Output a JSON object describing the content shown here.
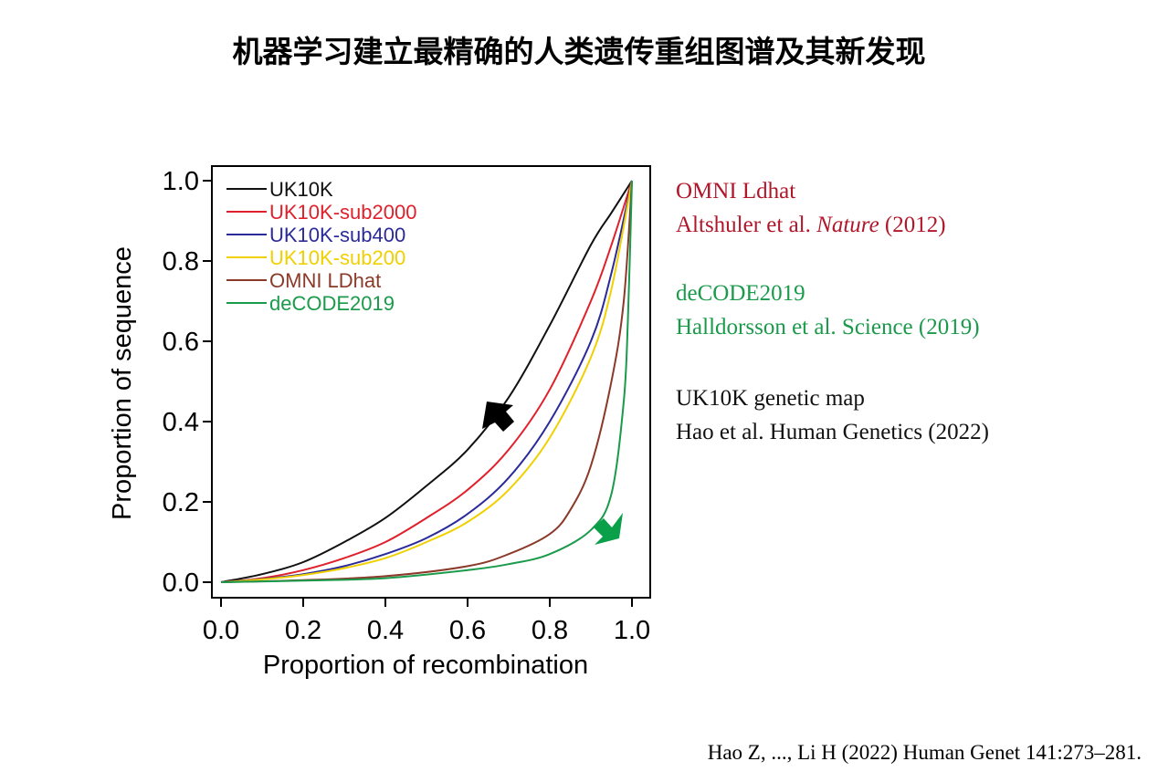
{
  "title": "机器学习建立最精确的人类遗传重组图谱及其新发现",
  "notes": [
    {
      "line1": "OMNI Ldhat",
      "line2a": "Altshuler et al. ",
      "line2i": "Nature",
      "line2b": " (2012)",
      "color": "#b0172a"
    },
    {
      "line1": "deCODE2019",
      "line2a": "Halldorsson et al. Science (2019)",
      "line2i": "",
      "line2b": "",
      "color": "#1a9a4a"
    },
    {
      "line1": "UK10K genetic map",
      "line2a": "Hao et al. Human Genetics (2022)",
      "line2i": "",
      "line2b": "",
      "color": "#111111"
    }
  ],
  "citation": "Hao Z, ..., Li H (2022) Human Genet 141:273–281.",
  "chart_data": {
    "type": "line",
    "xlabel": "Proportion of recombination",
    "ylabel": "Proportion of sequence",
    "xlim": [
      0,
      1
    ],
    "ylim": [
      0,
      1
    ],
    "xticks": [
      "0.0",
      "0.2",
      "0.4",
      "0.6",
      "0.8",
      "1.0"
    ],
    "yticks": [
      "0.0",
      "0.2",
      "0.4",
      "0.6",
      "0.8",
      "1.0"
    ],
    "legend_position": "top-left",
    "series": [
      {
        "name": "UK10K",
        "color": "#111111",
        "x": [
          0,
          0.1,
          0.2,
          0.3,
          0.4,
          0.5,
          0.6,
          0.7,
          0.8,
          0.9,
          0.95,
          1
        ],
        "y": [
          0,
          0.02,
          0.05,
          0.1,
          0.16,
          0.24,
          0.33,
          0.46,
          0.64,
          0.84,
          0.92,
          1
        ]
      },
      {
        "name": "UK10K-sub2000",
        "color": "#e0202a",
        "x": [
          0,
          0.1,
          0.2,
          0.3,
          0.4,
          0.5,
          0.6,
          0.7,
          0.8,
          0.9,
          0.95,
          1
        ],
        "y": [
          0,
          0.01,
          0.03,
          0.06,
          0.1,
          0.16,
          0.23,
          0.33,
          0.48,
          0.7,
          0.84,
          1
        ]
      },
      {
        "name": "UK10K-sub400",
        "color": "#2a2a9a",
        "x": [
          0,
          0.1,
          0.2,
          0.3,
          0.4,
          0.5,
          0.6,
          0.7,
          0.8,
          0.9,
          0.95,
          1
        ],
        "y": [
          0,
          0.008,
          0.02,
          0.04,
          0.07,
          0.11,
          0.17,
          0.26,
          0.4,
          0.6,
          0.77,
          1
        ]
      },
      {
        "name": "UK10K-sub200",
        "color": "#f0d000",
        "x": [
          0,
          0.1,
          0.2,
          0.3,
          0.4,
          0.5,
          0.6,
          0.7,
          0.8,
          0.9,
          0.95,
          1
        ],
        "y": [
          0,
          0.007,
          0.018,
          0.035,
          0.06,
          0.1,
          0.15,
          0.23,
          0.36,
          0.56,
          0.73,
          1
        ]
      },
      {
        "name": "OMNI LDhat",
        "color": "#8b3a2a",
        "x": [
          0,
          0.2,
          0.4,
          0.6,
          0.7,
          0.8,
          0.85,
          0.9,
          0.95,
          0.98,
          1
        ],
        "y": [
          0,
          0.005,
          0.015,
          0.04,
          0.07,
          0.12,
          0.18,
          0.29,
          0.5,
          0.7,
          1
        ]
      },
      {
        "name": "deCODE2019",
        "color": "#1a9a4a",
        "x": [
          0,
          0.2,
          0.4,
          0.6,
          0.7,
          0.8,
          0.9,
          0.95,
          0.98,
          0.99,
          1
        ],
        "y": [
          0,
          0.004,
          0.01,
          0.03,
          0.045,
          0.07,
          0.13,
          0.22,
          0.45,
          0.65,
          1
        ]
      }
    ],
    "annotations": [
      {
        "type": "arrow",
        "direction": "up-left",
        "color": "#000000"
      },
      {
        "type": "arrow",
        "direction": "down-right",
        "color": "#0aa04a"
      }
    ]
  }
}
